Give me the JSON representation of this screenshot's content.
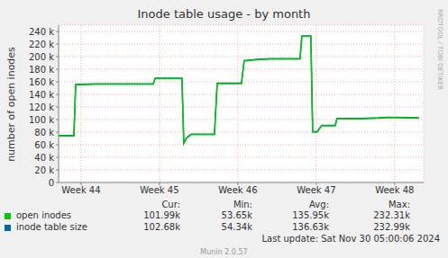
{
  "chart_data": {
    "type": "line",
    "title": "Inode table usage - by month",
    "y_label": "number of open inodes",
    "x": [
      43.713,
      43.908,
      43.931,
      44.172,
      44.92,
      44.943,
      45.287,
      45.31,
      45.345,
      45.402,
      45.448,
      45.701,
      45.736,
      46.046,
      46.08,
      46.241,
      46.414,
      46.793,
      46.816,
      46.931,
      46.954,
      47.011,
      47.069,
      47.241,
      47.264,
      47.563,
      47.793,
      47.908,
      48.023,
      48.31
    ],
    "series": [
      {
        "name": "inode table size",
        "color": "#0066b3",
        "values": [
          74700,
          74700,
          155700,
          156700,
          156700,
          165700,
          165700,
          62700,
          70700,
          76700,
          76700,
          76700,
          157700,
          157700,
          193700,
          195700,
          196700,
          196700,
          232700,
          232700,
          80700,
          80700,
          90700,
          90700,
          101700,
          101700,
          102700,
          103700,
          103700,
          102700
        ]
      },
      {
        "name": "open inodes",
        "color": "#00cc00",
        "values": [
          74000,
          74000,
          155000,
          156000,
          156000,
          165000,
          165000,
          62000,
          70000,
          76000,
          76000,
          76000,
          157000,
          157000,
          193000,
          195000,
          196000,
          196000,
          232000,
          232000,
          80000,
          80000,
          90000,
          90000,
          101000,
          101000,
          102000,
          103000,
          103000,
          102000
        ]
      }
    ],
    "xlim": [
      43.713,
      48.37
    ],
    "xticks": [
      {
        "value": 44,
        "label": "Week 44"
      },
      {
        "value": 45,
        "label": "Week 45"
      },
      {
        "value": 46,
        "label": "Week 46"
      },
      {
        "value": 47,
        "label": "Week 47"
      },
      {
        "value": 48,
        "label": "Week 48"
      }
    ],
    "ylim": [
      0,
      250000
    ],
    "yticks": [
      0,
      {
        "value": 20000,
        "label": "20 k"
      },
      {
        "value": 40000,
        "label": "40 k"
      },
      {
        "value": 60000,
        "label": "60 k"
      },
      {
        "value": 80000,
        "label": "80 k"
      },
      {
        "value": 100000,
        "label": "100 k"
      },
      {
        "value": 120000,
        "label": "120 k"
      },
      {
        "value": 140000,
        "label": "140 k"
      },
      {
        "value": 160000,
        "label": "160 k"
      },
      {
        "value": 180000,
        "label": "180 k"
      },
      {
        "value": 200000,
        "label": "200 k"
      },
      {
        "value": 220000,
        "label": "220 k"
      },
      {
        "value": 240000,
        "label": "240 k"
      }
    ],
    "grid": true,
    "legend": "bottom",
    "stats": {
      "columns": [
        "Cur:",
        "Min:",
        "Avg:",
        "Max:"
      ],
      "rows": [
        {
          "name": "open inodes",
          "color": "#00cc00",
          "values": [
            "101.99k",
            "53.65k",
            "135.95k",
            "232.31k"
          ]
        },
        {
          "name": "inode table size",
          "color": "#0066b3",
          "values": [
            "102.68k",
            "54.34k",
            "136.63k",
            "232.99k"
          ]
        }
      ]
    },
    "last_update": "Last update: Sat Nov 30 05:00:06 2024",
    "footer": "Munin 2.0.57",
    "watermark": "RRDTOOL / TOBI OETIKER"
  }
}
